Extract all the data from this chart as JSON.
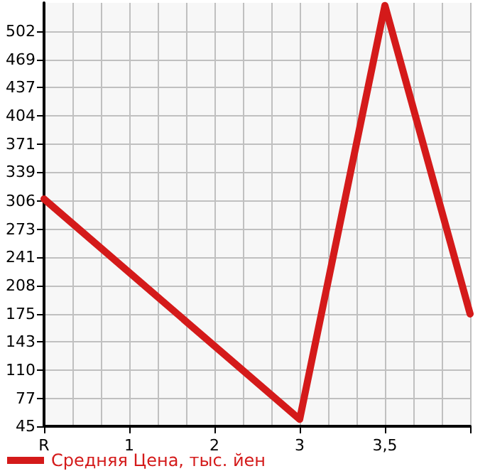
{
  "chart_data": {
    "type": "line",
    "categories": [
      "R",
      "1",
      "2",
      "3",
      "3,5",
      null
    ],
    "series": [
      {
        "name": "Средняя Цена, тыс. йен",
        "color": "#d41a1a",
        "values": [
          308,
          null,
          null,
          53,
          532,
          175
        ]
      }
    ],
    "ylim": [
      45,
      535
    ],
    "yticks": [
      45,
      77,
      110,
      143,
      175,
      208,
      241,
      273,
      306,
      339,
      371,
      404,
      437,
      469,
      502
    ],
    "grid": true,
    "legend": "bottom left",
    "marker": "none",
    "line_style": "solid"
  }
}
